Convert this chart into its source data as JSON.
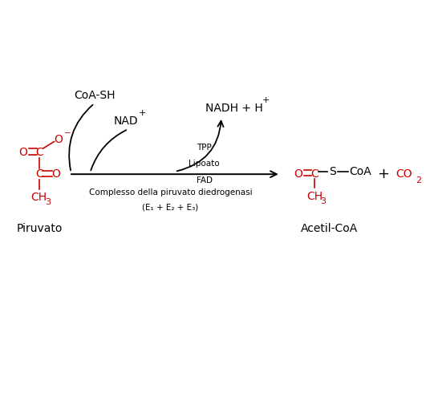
{
  "bg_color": "#ffffff",
  "red_color": "#cc0000",
  "black_color": "#000000",
  "piruvato_label": "Piruvato",
  "acetil_label": "Acetil-CoA",
  "coa_sh_label": "CoA-SH",
  "nad_label": "NAD",
  "nad_sup": "+",
  "nadh_label": "NADH + H",
  "nadh_sup": "+",
  "cofactors": [
    "TPP",
    "Lipoato",
    "FAD"
  ],
  "complex_label": "Complesso della piruvato diedrogenasi",
  "complex_sub": "(E₁ + E₂ + E₃)",
  "plus_label": "+",
  "co2_label": "CO",
  "co2_sub": "2",
  "figsize": [
    5.36,
    4.9
  ],
  "dpi": 100,
  "xlim": [
    0,
    10
  ],
  "ylim": [
    0,
    9
  ],
  "fontsize_base": 10,
  "fontsize_small": 7.5,
  "fontsize_sub": 8
}
